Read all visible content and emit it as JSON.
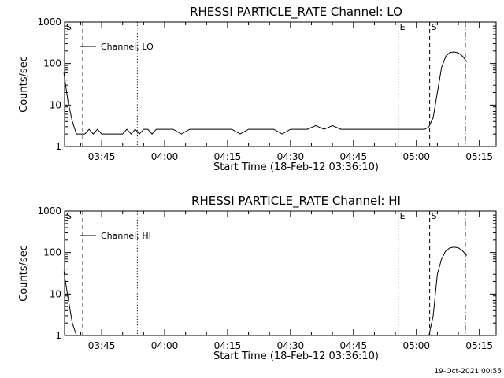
{
  "footer_timestamp": "19-Oct-2021 00:55",
  "chart_data": [
    {
      "type": "line",
      "title": "RHESSI PARTICLE_RATE Channel: LO",
      "xlabel": "Start Time (18-Feb-12 03:36:10)",
      "ylabel": "Counts/sec",
      "yscale": "log",
      "ylim": [
        1,
        1000
      ],
      "xlim": [
        "03:36:10",
        "05:19:00"
      ],
      "x_tick_labels": [
        "03:45",
        "04:00",
        "04:15",
        "04:30",
        "04:45",
        "05:00",
        "05:15"
      ],
      "y_tick_labels": [
        "1",
        "10",
        "100",
        "1000"
      ],
      "legend": "Channel: LO",
      "series": [
        {
          "name": "Channel: LO",
          "x": [
            "03:36",
            "03:37",
            "03:38",
            "03:39",
            "03:40",
            "03:41",
            "03:42",
            "03:43",
            "03:44",
            "03:45",
            "03:46",
            "03:47",
            "03:48",
            "03:49",
            "03:50",
            "03:51",
            "03:52",
            "03:53",
            "03:54",
            "03:55",
            "03:56",
            "03:57",
            "03:58",
            "03:59",
            "04:00",
            "04:02",
            "04:04",
            "04:06",
            "04:08",
            "04:10",
            "04:12",
            "04:14",
            "04:16",
            "04:18",
            "04:20",
            "04:22",
            "04:24",
            "04:26",
            "04:28",
            "04:30",
            "04:32",
            "04:34",
            "04:36",
            "04:38",
            "04:40",
            "04:42",
            "04:44",
            "04:46",
            "04:48",
            "04:50",
            "04:52",
            "04:54",
            "04:56",
            "04:58",
            "05:00",
            "05:02",
            "05:03",
            "05:04",
            "05:05",
            "05:06",
            "05:07",
            "05:08",
            "05:09",
            "05:10",
            "05:11",
            "05:12"
          ],
          "values": [
            60,
            12,
            4,
            2,
            2,
            2,
            2.6,
            2,
            2.6,
            2,
            2,
            2,
            2,
            2,
            2,
            2.6,
            2,
            2.6,
            2,
            2.6,
            2.6,
            2,
            2.6,
            2.6,
            2.6,
            2.6,
            2,
            2.6,
            2.6,
            2.6,
            2.6,
            2.6,
            2.6,
            2,
            2.6,
            2.6,
            2.6,
            2.6,
            2,
            2.6,
            2.6,
            2.6,
            3.2,
            2.6,
            3.2,
            2.6,
            2.6,
            2.6,
            2.6,
            2.6,
            2.6,
            2.6,
            2.6,
            2.6,
            2.6,
            2.6,
            3,
            5,
            20,
            80,
            150,
            185,
            190,
            180,
            150,
            110
          ]
        }
      ],
      "markers": [
        {
          "label": "S",
          "time": "03:36:10",
          "style": "solid"
        },
        {
          "label": "",
          "time": "03:40:30",
          "style": "dashed"
        },
        {
          "label": "",
          "time": "03:53:30",
          "style": "dotted"
        },
        {
          "label": "E",
          "time": "04:55:40",
          "style": "dotted"
        },
        {
          "label": "S",
          "time": "05:03:10",
          "style": "dashed"
        },
        {
          "label": "",
          "time": "05:11:40",
          "style": "dashdot"
        }
      ]
    },
    {
      "type": "line",
      "title": "RHESSI PARTICLE_RATE Channel: HI",
      "xlabel": "Start Time (18-Feb-12 03:36:10)",
      "ylabel": "Counts/sec",
      "yscale": "log",
      "ylim": [
        1,
        1000
      ],
      "xlim": [
        "03:36:10",
        "05:19:00"
      ],
      "x_tick_labels": [
        "03:45",
        "04:00",
        "04:15",
        "04:30",
        "04:45",
        "05:00",
        "05:15"
      ],
      "y_tick_labels": [
        "1",
        "10",
        "100",
        "1000"
      ],
      "legend": "Channel: HI",
      "series": [
        {
          "name": "Channel: HI",
          "x": [
            "03:36",
            "03:37",
            "03:38",
            "03:39",
            "03:40",
            "05:03",
            "05:04",
            "05:05",
            "05:06",
            "05:07",
            "05:08",
            "05:09",
            "05:10",
            "05:11",
            "05:12"
          ],
          "values": [
            35,
            8,
            2,
            1,
            1,
            1,
            3,
            30,
            70,
            110,
            130,
            135,
            130,
            110,
            85
          ]
        }
      ],
      "markers": [
        {
          "label": "S",
          "time": "03:36:10",
          "style": "solid"
        },
        {
          "label": "",
          "time": "03:40:30",
          "style": "dashed"
        },
        {
          "label": "",
          "time": "03:53:30",
          "style": "dotted"
        },
        {
          "label": "E",
          "time": "04:55:40",
          "style": "dotted"
        },
        {
          "label": "S",
          "time": "05:03:10",
          "style": "dashed"
        },
        {
          "label": "",
          "time": "05:11:40",
          "style": "dashdot"
        }
      ]
    }
  ]
}
